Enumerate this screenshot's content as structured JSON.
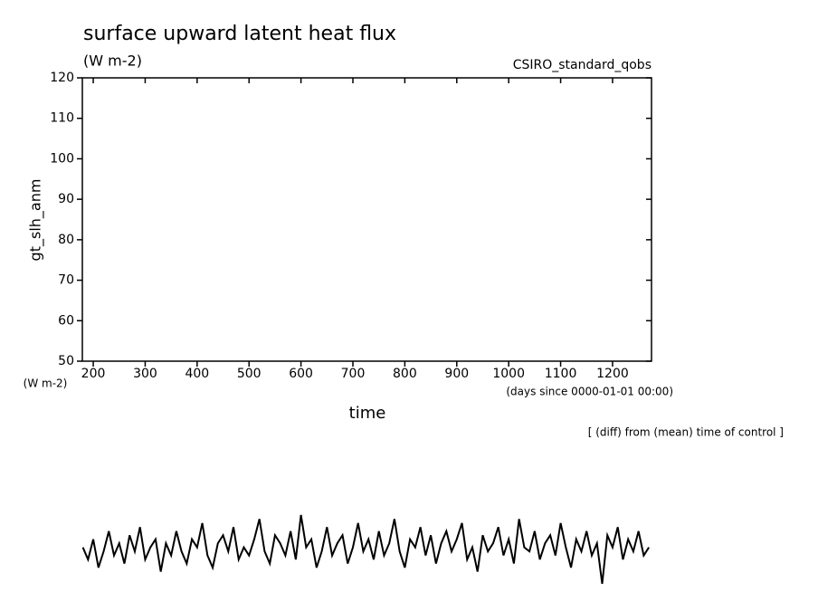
{
  "chart_data": {
    "type": "line",
    "title": "surface upward latent heat flux",
    "subtitle": "(W m-2)",
    "source": "CSIRO_standard_qobs",
    "y_label": "gt_slh_anm",
    "y_unit": "(W m-2)",
    "x_label": "time",
    "x_unit": "(days since 0000-01-01 00:00)",
    "annotation": "[ (diff) from (mean) time of control ]",
    "xlim": [
      179,
      1275
    ],
    "ylim": [
      50,
      120
    ],
    "xticks": [
      200,
      300,
      400,
      500,
      600,
      700,
      800,
      900,
      1000,
      1100,
      1200
    ],
    "yticks": [
      50,
      60,
      70,
      80,
      90,
      100,
      110,
      120
    ],
    "x": [
      180,
      190,
      200,
      210,
      220,
      230,
      240,
      250,
      260,
      270,
      280,
      290,
      300,
      310,
      320,
      330,
      340,
      350,
      360,
      370,
      380,
      390,
      400,
      410,
      420,
      430,
      440,
      450,
      460,
      470,
      480,
      490,
      500,
      510,
      520,
      530,
      540,
      550,
      560,
      570,
      580,
      590,
      600,
      610,
      620,
      630,
      640,
      650,
      660,
      670,
      680,
      690,
      700,
      710,
      720,
      730,
      740,
      750,
      760,
      770,
      780,
      790,
      800,
      810,
      820,
      830,
      840,
      850,
      860,
      870,
      880,
      890,
      900,
      910,
      920,
      930,
      940,
      950,
      960,
      970,
      980,
      990,
      1000,
      1010,
      1020,
      1030,
      1040,
      1050,
      1060,
      1070,
      1080,
      1090,
      1100,
      1110,
      1120,
      1130,
      1140,
      1150,
      1160,
      1170,
      1180,
      1190,
      1200,
      1210,
      1220,
      1230,
      1240,
      1250,
      1260,
      1270
    ],
    "series": [
      {
        "color": "#000000",
        "values": [
          4,
          1,
          6,
          -1,
          3,
          8,
          2,
          5,
          0,
          7,
          3,
          9,
          1,
          4,
          6,
          -2,
          5,
          2,
          8,
          3,
          0,
          6,
          4,
          10,
          2,
          -1,
          5,
          7,
          3,
          9,
          1,
          4,
          2,
          6,
          11,
          3,
          0,
          7,
          5,
          2,
          8,
          1,
          12,
          4,
          6,
          -1,
          3,
          9,
          2,
          5,
          7,
          0,
          4,
          10,
          3,
          6,
          1,
          8,
          2,
          5,
          11,
          3,
          -1,
          6,
          4,
          9,
          2,
          7,
          0,
          5,
          8,
          3,
          6,
          10,
          1,
          4,
          -2,
          7,
          3,
          5,
          9,
          2,
          6,
          0,
          11,
          4,
          3,
          8,
          1,
          5,
          7,
          2,
          10,
          4,
          -1,
          6,
          3,
          8,
          2,
          5,
          -5,
          7,
          4,
          9,
          1,
          6,
          3,
          8,
          2,
          4
        ]
      }
    ]
  }
}
